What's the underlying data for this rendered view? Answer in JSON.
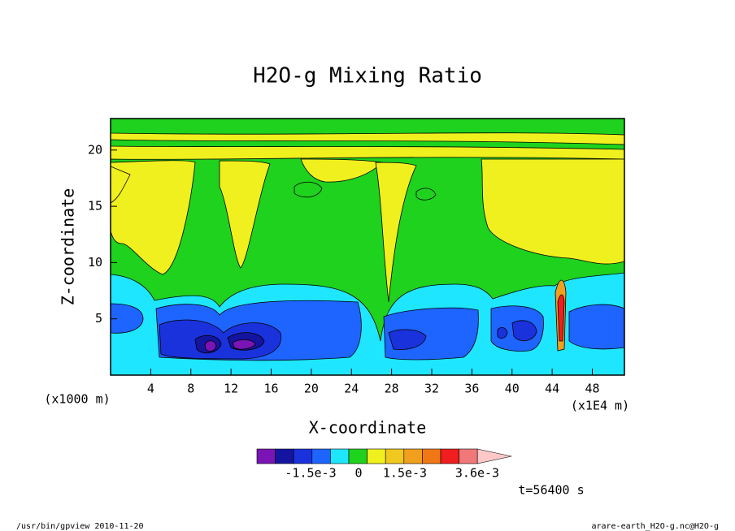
{
  "chart_data": {
    "type": "contour",
    "title": "H2O-g Mixing Ratio",
    "x_label": "X-coordinate",
    "y_label": "Z-coordinate",
    "x_unit_left": "(x1000 m)",
    "x_unit_right": "(x1E4 m)",
    "time_label": "t=56400 s",
    "footer_left": "/usr/bin/gpview  2010-11-20",
    "footer_right": "arare-earth_H2O-g.nc@H2O-g",
    "xlim": [
      0,
      51.2
    ],
    "ylim": [
      0,
      22.8
    ],
    "xticks": [
      4,
      8,
      12,
      16,
      20,
      24,
      28,
      32,
      36,
      40,
      44,
      48
    ],
    "yticks": [
      5,
      10,
      15,
      20
    ],
    "colorbar": {
      "colors": [
        "#7a14b4",
        "#1414a0",
        "#1a32dc",
        "#1e64ff",
        "#1ee6ff",
        "#1ed21e",
        "#f0f01e",
        "#f0c81e",
        "#f0a01e",
        "#f07814",
        "#f01e1e",
        "#f07878",
        "#ffc8c8"
      ],
      "ticks": [
        {
          "value": -0.0015,
          "label": "-1.5e-3"
        },
        0,
        {
          "value": 0.0015,
          "label": "1.5e-3"
        },
        {
          "value": 0.0036,
          "label": "3.6e-3"
        }
      ]
    }
  }
}
